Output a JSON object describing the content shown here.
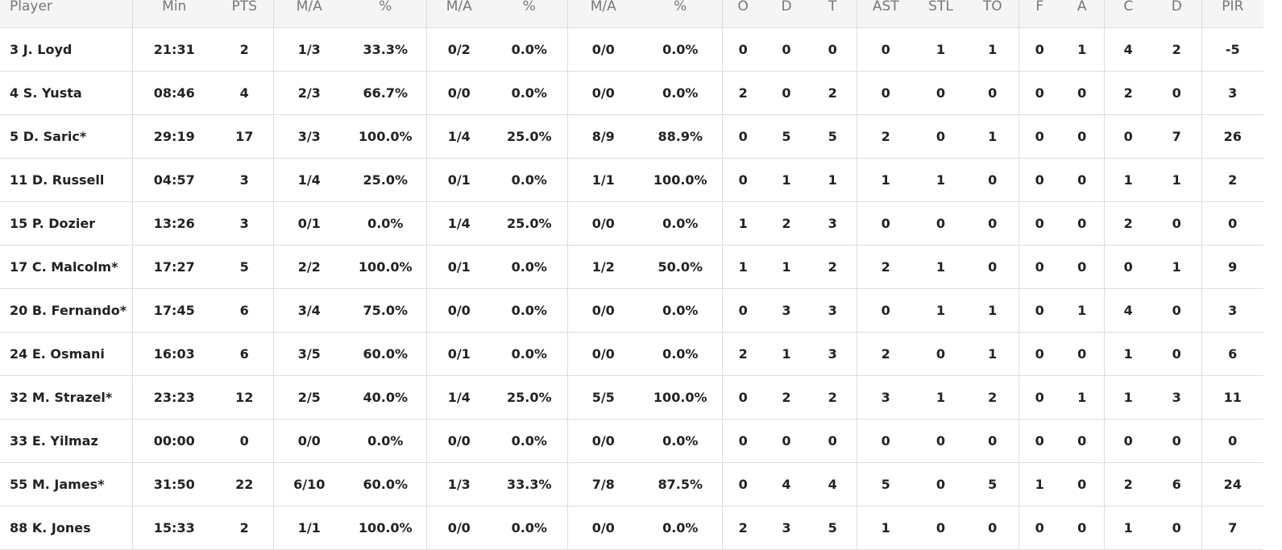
{
  "table": {
    "header": [
      "Player",
      "Min",
      "PTS",
      "M/A",
      "%",
      "M/A",
      "%",
      "M/A",
      "%",
      "O",
      "D",
      "T",
      "AST",
      "STL",
      "TO",
      "F",
      "A",
      "C",
      "D",
      "PIR"
    ],
    "rows": [
      [
        "3 J. Loyd",
        "21:31",
        "2",
        "1/3",
        "33.3%",
        "0/2",
        "0.0%",
        "0/0",
        "0.0%",
        "0",
        "0",
        "0",
        "0",
        "1",
        "1",
        "0",
        "1",
        "4",
        "2",
        "-5"
      ],
      [
        "4 S. Yusta",
        "08:46",
        "4",
        "2/3",
        "66.7%",
        "0/0",
        "0.0%",
        "0/0",
        "0.0%",
        "2",
        "0",
        "2",
        "0",
        "0",
        "0",
        "0",
        "0",
        "2",
        "0",
        "3"
      ],
      [
        "5 D. Saric*",
        "29:19",
        "17",
        "3/3",
        "100.0%",
        "1/4",
        "25.0%",
        "8/9",
        "88.9%",
        "0",
        "5",
        "5",
        "2",
        "0",
        "1",
        "0",
        "0",
        "0",
        "7",
        "26"
      ],
      [
        "11 D. Russell",
        "04:57",
        "3",
        "1/4",
        "25.0%",
        "0/1",
        "0.0%",
        "1/1",
        "100.0%",
        "0",
        "1",
        "1",
        "1",
        "1",
        "0",
        "0",
        "0",
        "1",
        "1",
        "2"
      ],
      [
        "15 P. Dozier",
        "13:26",
        "3",
        "0/1",
        "0.0%",
        "1/4",
        "25.0%",
        "0/0",
        "0.0%",
        "1",
        "2",
        "3",
        "0",
        "0",
        "0",
        "0",
        "0",
        "2",
        "0",
        "0"
      ],
      [
        "17 C. Malcolm*",
        "17:27",
        "5",
        "2/2",
        "100.0%",
        "0/1",
        "0.0%",
        "1/2",
        "50.0%",
        "1",
        "1",
        "2",
        "2",
        "1",
        "0",
        "0",
        "0",
        "0",
        "1",
        "9"
      ],
      [
        "20 B. Fernando*",
        "17:45",
        "6",
        "3/4",
        "75.0%",
        "0/0",
        "0.0%",
        "0/0",
        "0.0%",
        "0",
        "3",
        "3",
        "0",
        "1",
        "1",
        "0",
        "1",
        "4",
        "0",
        "3"
      ],
      [
        "24 E. Osmani",
        "16:03",
        "6",
        "3/5",
        "60.0%",
        "0/1",
        "0.0%",
        "0/0",
        "0.0%",
        "2",
        "1",
        "3",
        "2",
        "0",
        "1",
        "0",
        "0",
        "1",
        "0",
        "6"
      ],
      [
        "32 M. Strazel*",
        "23:23",
        "12",
        "2/5",
        "40.0%",
        "1/4",
        "25.0%",
        "5/5",
        "100.0%",
        "0",
        "2",
        "2",
        "3",
        "1",
        "2",
        "0",
        "1",
        "1",
        "3",
        "11"
      ],
      [
        "33 E. Yilmaz",
        "00:00",
        "0",
        "0/0",
        "0.0%",
        "0/0",
        "0.0%",
        "0/0",
        "0.0%",
        "0",
        "0",
        "0",
        "0",
        "0",
        "0",
        "0",
        "0",
        "0",
        "0",
        "0"
      ],
      [
        "55 M. James*",
        "31:50",
        "22",
        "6/10",
        "60.0%",
        "1/3",
        "33.3%",
        "7/8",
        "87.5%",
        "0",
        "4",
        "4",
        "5",
        "0",
        "5",
        "1",
        "0",
        "2",
        "6",
        "24"
      ],
      [
        "88 K. Jones",
        "15:33",
        "2",
        "1/1",
        "100.0%",
        "0/0",
        "0.0%",
        "0/0",
        "0.0%",
        "2",
        "3",
        "5",
        "1",
        "0",
        "0",
        "0",
        "0",
        "1",
        "0",
        "7"
      ]
    ]
  }
}
